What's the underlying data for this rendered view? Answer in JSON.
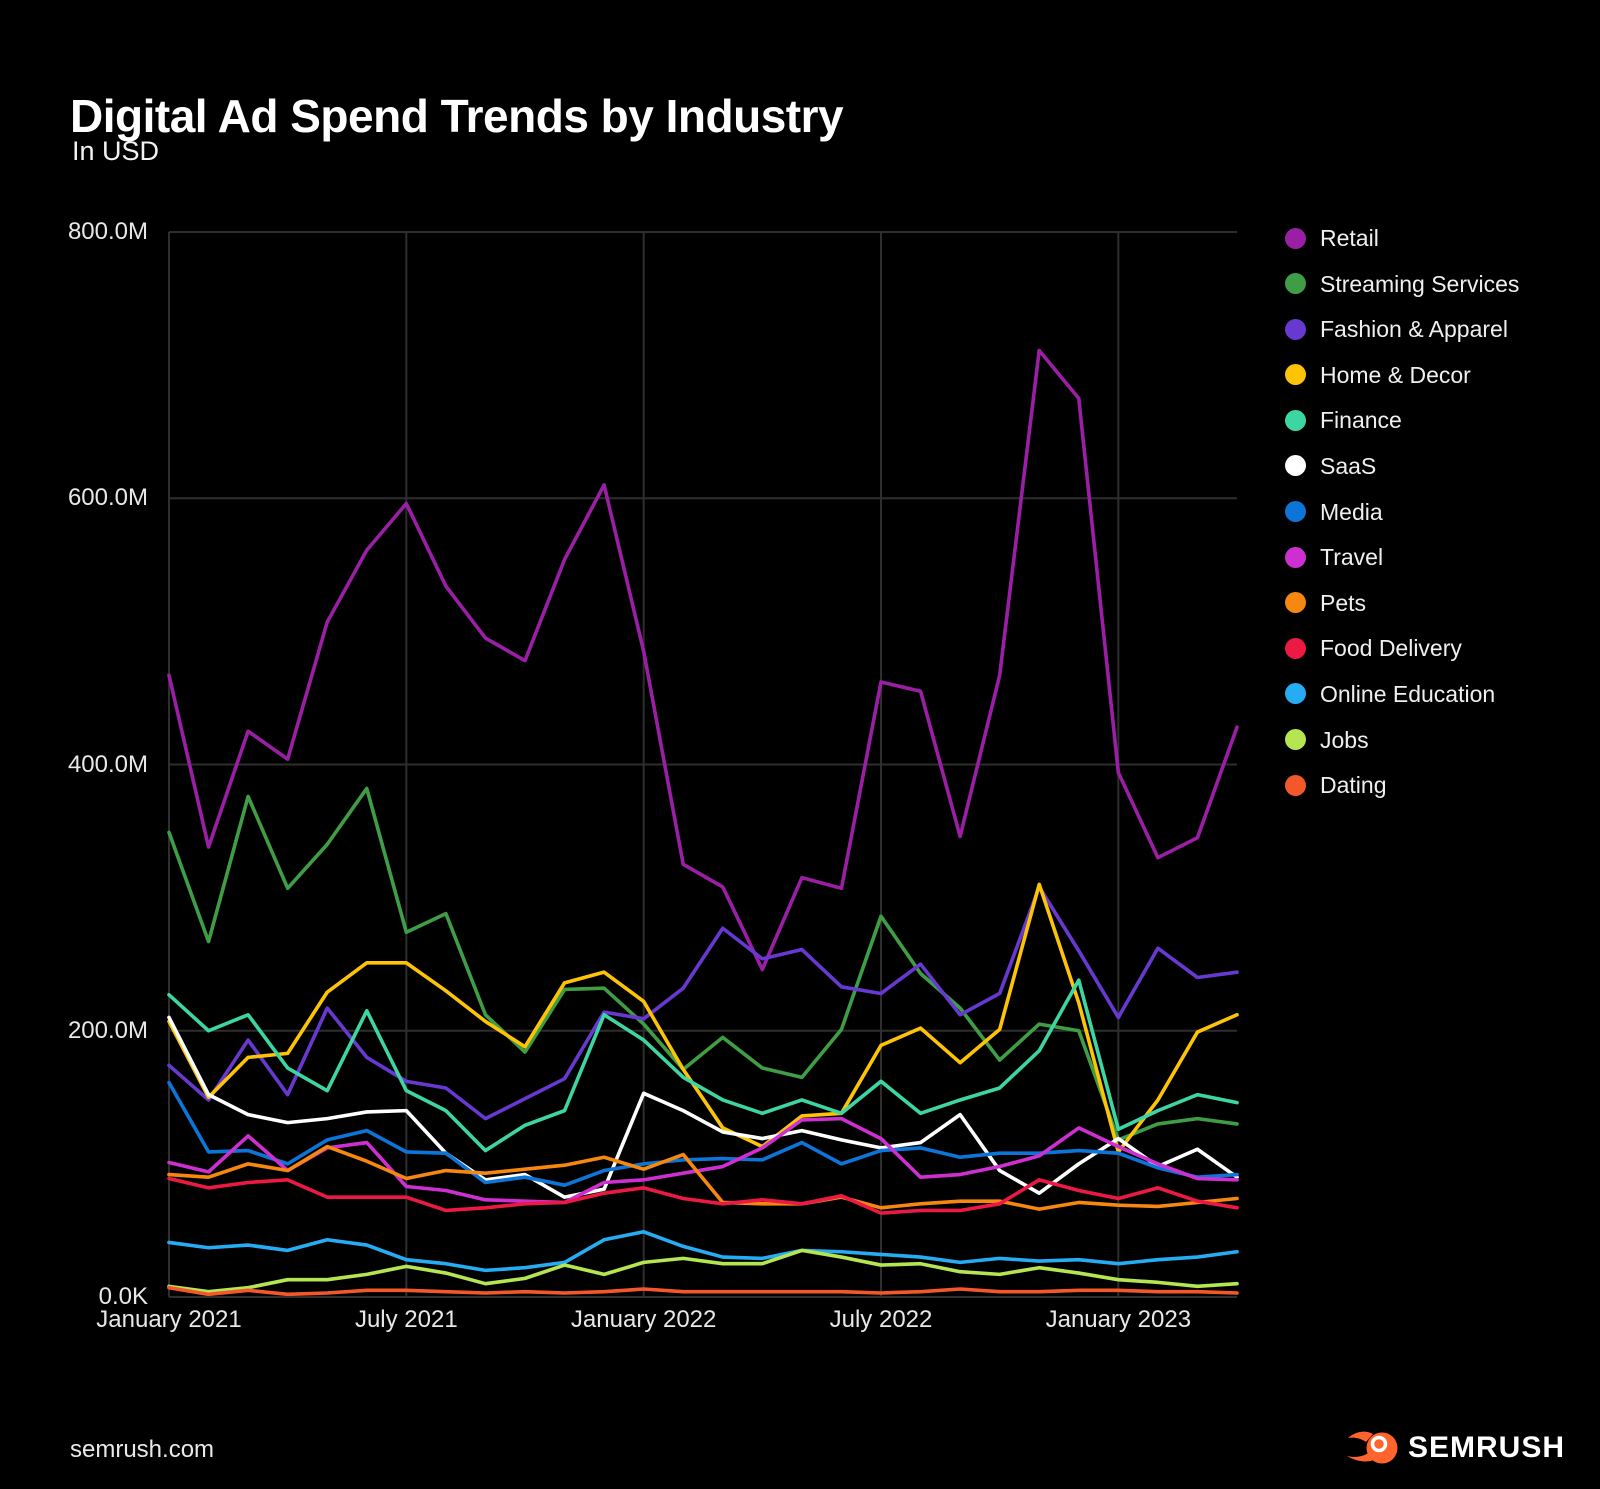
{
  "title": "Digital Ad Spend Trends by Industry",
  "subtitle": "In USD",
  "footer": {
    "site": "semrush.com",
    "brand": "SEMRUSH",
    "brand_color": "#FF642D"
  },
  "chart_data": {
    "type": "line",
    "title": "Digital Ad Spend Trends by Industry",
    "subtitle": "In USD",
    "unit": "USD millions",
    "n_points": 28,
    "x_range": [
      "January 2021",
      "April 2023"
    ],
    "grid": true,
    "legend_position": "right",
    "background": "#000000",
    "grid_color": "#2e2e2e",
    "ylim_millions": [
      0,
      800
    ],
    "y_ticks": [
      {
        "value": 800,
        "label": "800.0M"
      },
      {
        "value": 600,
        "label": "600.0M"
      },
      {
        "value": 400,
        "label": "400.0M"
      },
      {
        "value": 200,
        "label": "200.0M"
      },
      {
        "value": 0,
        "label": "0.0K"
      }
    ],
    "x_ticks": [
      {
        "index": 0,
        "label": "January 2021"
      },
      {
        "index": 6,
        "label": "July 2021"
      },
      {
        "index": 12,
        "label": "January 2022"
      },
      {
        "index": 18,
        "label": "July 2022"
      },
      {
        "index": 24,
        "label": "January 2023"
      }
    ],
    "series": [
      {
        "name": "Retail",
        "color": "#9A1FA5",
        "values": [
          467,
          338,
          425,
          404,
          507,
          561,
          596,
          534,
          495,
          478,
          554,
          610,
          485,
          325,
          308,
          246,
          315,
          307,
          462,
          455,
          346,
          467,
          711,
          675,
          394,
          330,
          345,
          428
        ]
      },
      {
        "name": "Streaming Services",
        "color": "#3F9E45",
        "values": [
          349,
          267,
          376,
          307,
          340,
          382,
          274,
          288,
          212,
          184,
          231,
          232,
          205,
          171,
          195,
          172,
          165,
          201,
          286,
          243,
          217,
          178,
          205,
          200,
          118,
          130,
          134,
          130
        ]
      },
      {
        "name": "Fashion & Apparel",
        "color": "#6739D1",
        "values": [
          174,
          148,
          193,
          152,
          217,
          180,
          162,
          157,
          134,
          149,
          164,
          214,
          209,
          232,
          277,
          254,
          261,
          233,
          228,
          250,
          212,
          228,
          308,
          260,
          210,
          262,
          240,
          244
        ]
      },
      {
        "name": "Home & Decor",
        "color": "#FDC306",
        "values": [
          207,
          150,
          180,
          183,
          229,
          251,
          251,
          230,
          207,
          188,
          236,
          244,
          222,
          171,
          127,
          113,
          136,
          138,
          189,
          202,
          176,
          201,
          310,
          221,
          109,
          148,
          199,
          212
        ]
      },
      {
        "name": "Finance",
        "color": "#3DD6A3",
        "values": [
          227,
          200,
          212,
          172,
          155,
          215,
          155,
          140,
          110,
          129,
          140,
          212,
          193,
          165,
          148,
          138,
          148,
          138,
          162,
          138,
          148,
          157,
          185,
          238,
          126,
          140,
          152,
          146
        ]
      },
      {
        "name": "SaaS",
        "color": "#FFFFFF",
        "values": [
          210,
          152,
          137,
          131,
          134,
          139,
          140,
          108,
          88,
          92,
          75,
          81,
          153,
          140,
          124,
          119,
          125,
          118,
          112,
          116,
          137,
          95,
          78,
          100,
          119,
          98,
          111,
          90
        ]
      },
      {
        "name": "Media",
        "color": "#0D74D8",
        "values": [
          161,
          109,
          110,
          100,
          118,
          125,
          109,
          108,
          86,
          90,
          84,
          95,
          100,
          103,
          104,
          103,
          116,
          100,
          110,
          112,
          105,
          108,
          108,
          110,
          108,
          97,
          90,
          92
        ]
      },
      {
        "name": "Travel",
        "color": "#CE2FD1",
        "values": [
          101,
          94,
          121,
          95,
          112,
          116,
          83,
          80,
          73,
          72,
          71,
          86,
          88,
          93,
          98,
          112,
          133,
          134,
          119,
          90,
          92,
          98,
          106,
          127,
          113,
          100,
          89,
          88
        ]
      },
      {
        "name": "Pets",
        "color": "#F6870F",
        "values": [
          92,
          90,
          100,
          95,
          113,
          102,
          89,
          95,
          93,
          96,
          99,
          105,
          96,
          107,
          71,
          70,
          70,
          75,
          67,
          70,
          72,
          72,
          66,
          71,
          69,
          68,
          71,
          74
        ]
      },
      {
        "name": "Food Delivery",
        "color": "#EC1944",
        "values": [
          89,
          82,
          86,
          88,
          75,
          75,
          75,
          65,
          67,
          70,
          71,
          78,
          82,
          74,
          70,
          73,
          70,
          76,
          63,
          65,
          65,
          70,
          88,
          80,
          74,
          82,
          72,
          67
        ]
      },
      {
        "name": "Online Education",
        "color": "#25ACF2",
        "values": [
          41,
          37,
          39,
          35,
          43,
          39,
          28,
          25,
          20,
          22,
          26,
          43,
          49,
          38,
          30,
          29,
          35,
          34,
          32,
          30,
          26,
          29,
          27,
          28,
          25,
          28,
          30,
          34
        ]
      },
      {
        "name": "Jobs",
        "color": "#B5E550",
        "values": [
          8,
          4,
          7,
          13,
          13,
          17,
          23,
          18,
          10,
          14,
          24,
          17,
          26,
          29,
          25,
          25,
          35,
          30,
          24,
          25,
          19,
          17,
          22,
          18,
          13,
          11,
          8,
          10
        ]
      },
      {
        "name": "Dating",
        "color": "#F4582A",
        "values": [
          7,
          2,
          5,
          2,
          3,
          5,
          5,
          4,
          3,
          4,
          3,
          4,
          6,
          4,
          4,
          4,
          4,
          4,
          3,
          4,
          6,
          4,
          4,
          5,
          5,
          4,
          4,
          3
        ]
      }
    ]
  }
}
